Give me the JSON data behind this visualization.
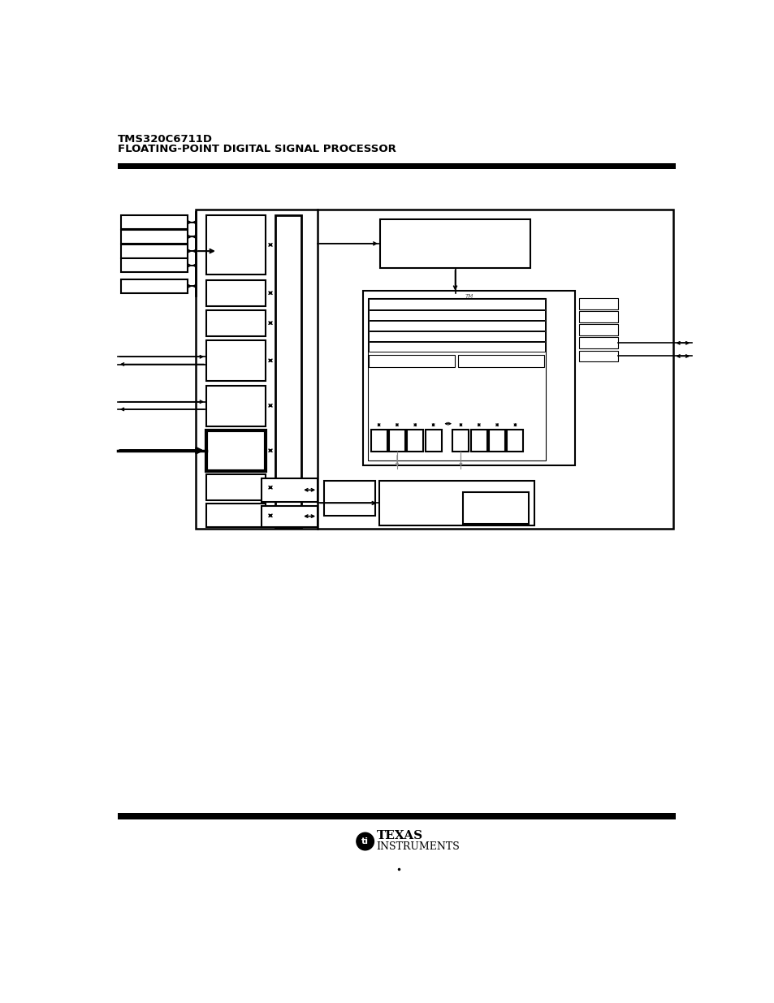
{
  "title_line1": "TMS320C6711D",
  "title_line2": "FLOATING-POINT DIGITAL SIGNAL PROCESSOR",
  "bg_color": "#ffffff",
  "fig_width": 9.54,
  "fig_height": 12.35,
  "dpi": 100
}
